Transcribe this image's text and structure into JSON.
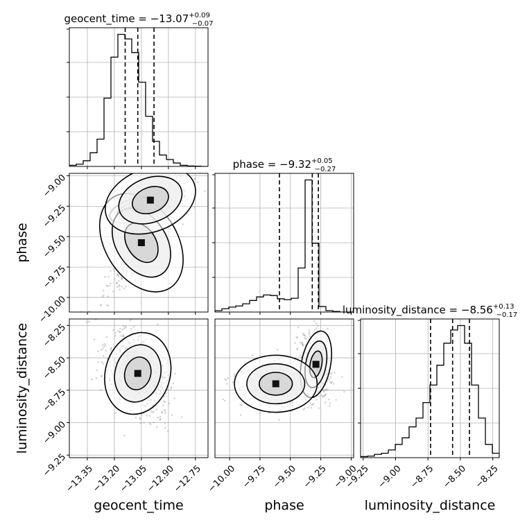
{
  "chart_data": {
    "type": "corner",
    "parameters": [
      "geocent_time",
      "phase",
      "luminosity_distance"
    ],
    "ranges": {
      "geocent_time": [
        -13.45,
        -12.68
      ],
      "phase": [
        -10.12,
        -8.98
      ],
      "luminosity_distance": [
        -9.27,
        -8.2
      ]
    },
    "ticks": {
      "geocent_time": [
        -13.35,
        -13.2,
        -13.05,
        -12.9,
        -12.75
      ],
      "phase": [
        -10.0,
        -9.75,
        -9.5,
        -9.25,
        -9.0
      ],
      "luminosity_distance": [
        -9.25,
        -9.0,
        -8.75,
        -8.5,
        -8.25
      ]
    },
    "tick_labels": {
      "geocent_time": [
        "−13.35",
        "−13.20",
        "−13.05",
        "−12.90",
        "−12.75"
      ],
      "phase": [
        "−10.00",
        "−9.75",
        "−9.50",
        "−9.25",
        "−9.00"
      ],
      "luminosity_distance": [
        "−9.25",
        "−9.00",
        "−8.75",
        "−8.50",
        "−8.25"
      ]
    },
    "axis_labels": {
      "geocent_time": "geocent_time",
      "phase": "phase",
      "luminosity_distance": "luminosity_distance"
    },
    "titles": {
      "geocent_time": {
        "label": "geocent_time",
        "median": "−13.07",
        "upper": "+0.09",
        "lower": "−0.07"
      },
      "phase": {
        "label": "phase",
        "median": "−9.32",
        "upper": "+0.05",
        "lower": "−0.27"
      },
      "luminosity_distance": {
        "label": "luminosity_distance",
        "median": "−8.56",
        "upper": "+0.13",
        "lower": "−0.17"
      }
    },
    "quantiles": {
      "geocent_time": [
        -13.14,
        -13.07,
        -12.98
      ],
      "phase": [
        -9.59,
        -9.32,
        -9.27
      ],
      "luminosity_distance": [
        -8.73,
        -8.56,
        -8.43
      ]
    },
    "histograms": {
      "geocent_time": {
        "edges": [
          -13.45,
          -13.4115,
          -13.373,
          -13.3345,
          -13.296,
          -13.2575,
          -13.219,
          -13.1805,
          -13.142,
          -13.1035,
          -13.065,
          -13.0265,
          -12.988,
          -12.9495,
          -12.911,
          -12.8725,
          -12.834,
          -12.7955,
          -12.757,
          -12.7185,
          -12.68
        ],
        "counts": [
          0.5,
          1,
          2.5,
          6,
          12,
          30,
          48,
          58,
          56,
          50,
          37,
          22,
          11,
          5,
          3,
          1.5,
          0.5,
          0.2,
          0.1,
          0
        ]
      },
      "phase": {
        "edges": [
          -10.12,
          -10.063,
          -10.006,
          -9.949,
          -9.892,
          -9.835,
          -9.778,
          -9.721,
          -9.664,
          -9.607,
          -9.55,
          -9.493,
          -9.436,
          -9.379,
          -9.322,
          -9.265,
          -9.208,
          -9.151,
          -9.094,
          -9.037,
          -8.98
        ],
        "counts": [
          0.5,
          1.2,
          1.8,
          2.2,
          3,
          4.2,
          5.5,
          6.2,
          6,
          4.8,
          4.5,
          5,
          16,
          48,
          25,
          2,
          0.5,
          0.2,
          0,
          0
        ]
      },
      "luminosity_distance": {
        "edges": [
          -9.27,
          -9.2165,
          -9.163,
          -9.1095,
          -9.056,
          -9.0025,
          -8.949,
          -8.8955,
          -8.842,
          -8.7885,
          -8.735,
          -8.6815,
          -8.628,
          -8.5745,
          -8.521,
          -8.4675,
          -8.414,
          -8.3605,
          -8.307,
          -8.2535,
          -8.2
        ],
        "counts": [
          0.5,
          0.7,
          1.5,
          2,
          3.5,
          6,
          9,
          14,
          18,
          25,
          33,
          42,
          52,
          58,
          60,
          52,
          33,
          18,
          6,
          2
        ]
      }
    },
    "grid": true
  }
}
